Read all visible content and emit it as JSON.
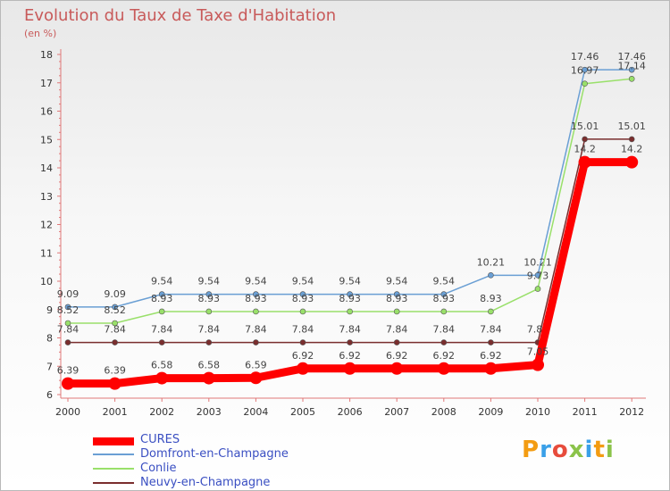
{
  "chart_data": {
    "type": "line",
    "title": "Evolution du Taux de Taxe d'Habitation",
    "subtitle": "(en %)",
    "xlabel": "",
    "ylabel": "(en %)",
    "ylim": [
      6,
      18
    ],
    "yticks": [
      6,
      7,
      8,
      9,
      10,
      11,
      12,
      13,
      14,
      15,
      16,
      17,
      18
    ],
    "categories": [
      "2000",
      "2001",
      "2002",
      "2003",
      "2004",
      "2005",
      "2006",
      "2007",
      "2008",
      "2009",
      "2010",
      "2011",
      "2012"
    ],
    "series": [
      {
        "name": "CURES",
        "color": "#ff0000",
        "values": [
          6.39,
          6.39,
          6.58,
          6.58,
          6.59,
          6.92,
          6.92,
          6.92,
          6.92,
          6.92,
          7.05,
          14.2,
          14.2
        ],
        "labels": [
          "6.39",
          "6.39",
          "6.58",
          "6.58",
          "6.59",
          "6.92",
          "6.92",
          "6.92",
          "6.92",
          "6.92",
          "7.05",
          "14.2",
          "14.2"
        ]
      },
      {
        "name": "Domfront-en-Champagne",
        "color": "#6a9fd4",
        "values": [
          9.09,
          9.09,
          9.54,
          9.54,
          9.54,
          9.54,
          9.54,
          9.54,
          9.54,
          10.21,
          10.21,
          17.46,
          17.46
        ],
        "labels": [
          "9.09",
          "9.09",
          "9.54",
          "9.54",
          "9.54",
          "9.54",
          "9.54",
          "9.54",
          "9.54",
          "10.21",
          "10.21",
          "17.46",
          "17.46"
        ]
      },
      {
        "name": "Conlie",
        "color": "#99e06a",
        "values": [
          8.52,
          8.52,
          8.93,
          8.93,
          8.93,
          8.93,
          8.93,
          8.93,
          8.93,
          8.93,
          9.73,
          16.97,
          17.14
        ],
        "labels": [
          "8.52",
          "8.52",
          "8.93",
          "8.93",
          "8.93",
          "8.93",
          "8.93",
          "8.93",
          "8.93",
          "8.93",
          "9.73",
          "16.97",
          "17.14"
        ]
      },
      {
        "name": "Neuvy-en-Champagne",
        "color": "#7a2e2e",
        "values": [
          7.84,
          7.84,
          7.84,
          7.84,
          7.84,
          7.84,
          7.84,
          7.84,
          7.84,
          7.84,
          7.84,
          15.01,
          15.01
        ],
        "labels": [
          "7.84",
          "7.84",
          "7.84",
          "7.84",
          "7.84",
          "7.84",
          "7.84",
          "7.84",
          "7.84",
          "7.84",
          "7.84",
          "15.01",
          "15.01"
        ]
      }
    ],
    "legend_position": "bottom-left",
    "grid": false
  },
  "branding": {
    "logo_text": "Proxiti",
    "logo_colors": [
      "#f39c12",
      "#3aa0e8",
      "#e74c3c",
      "#8bc34a",
      "#3aa0e8",
      "#f39c12",
      "#8bc34a"
    ]
  }
}
